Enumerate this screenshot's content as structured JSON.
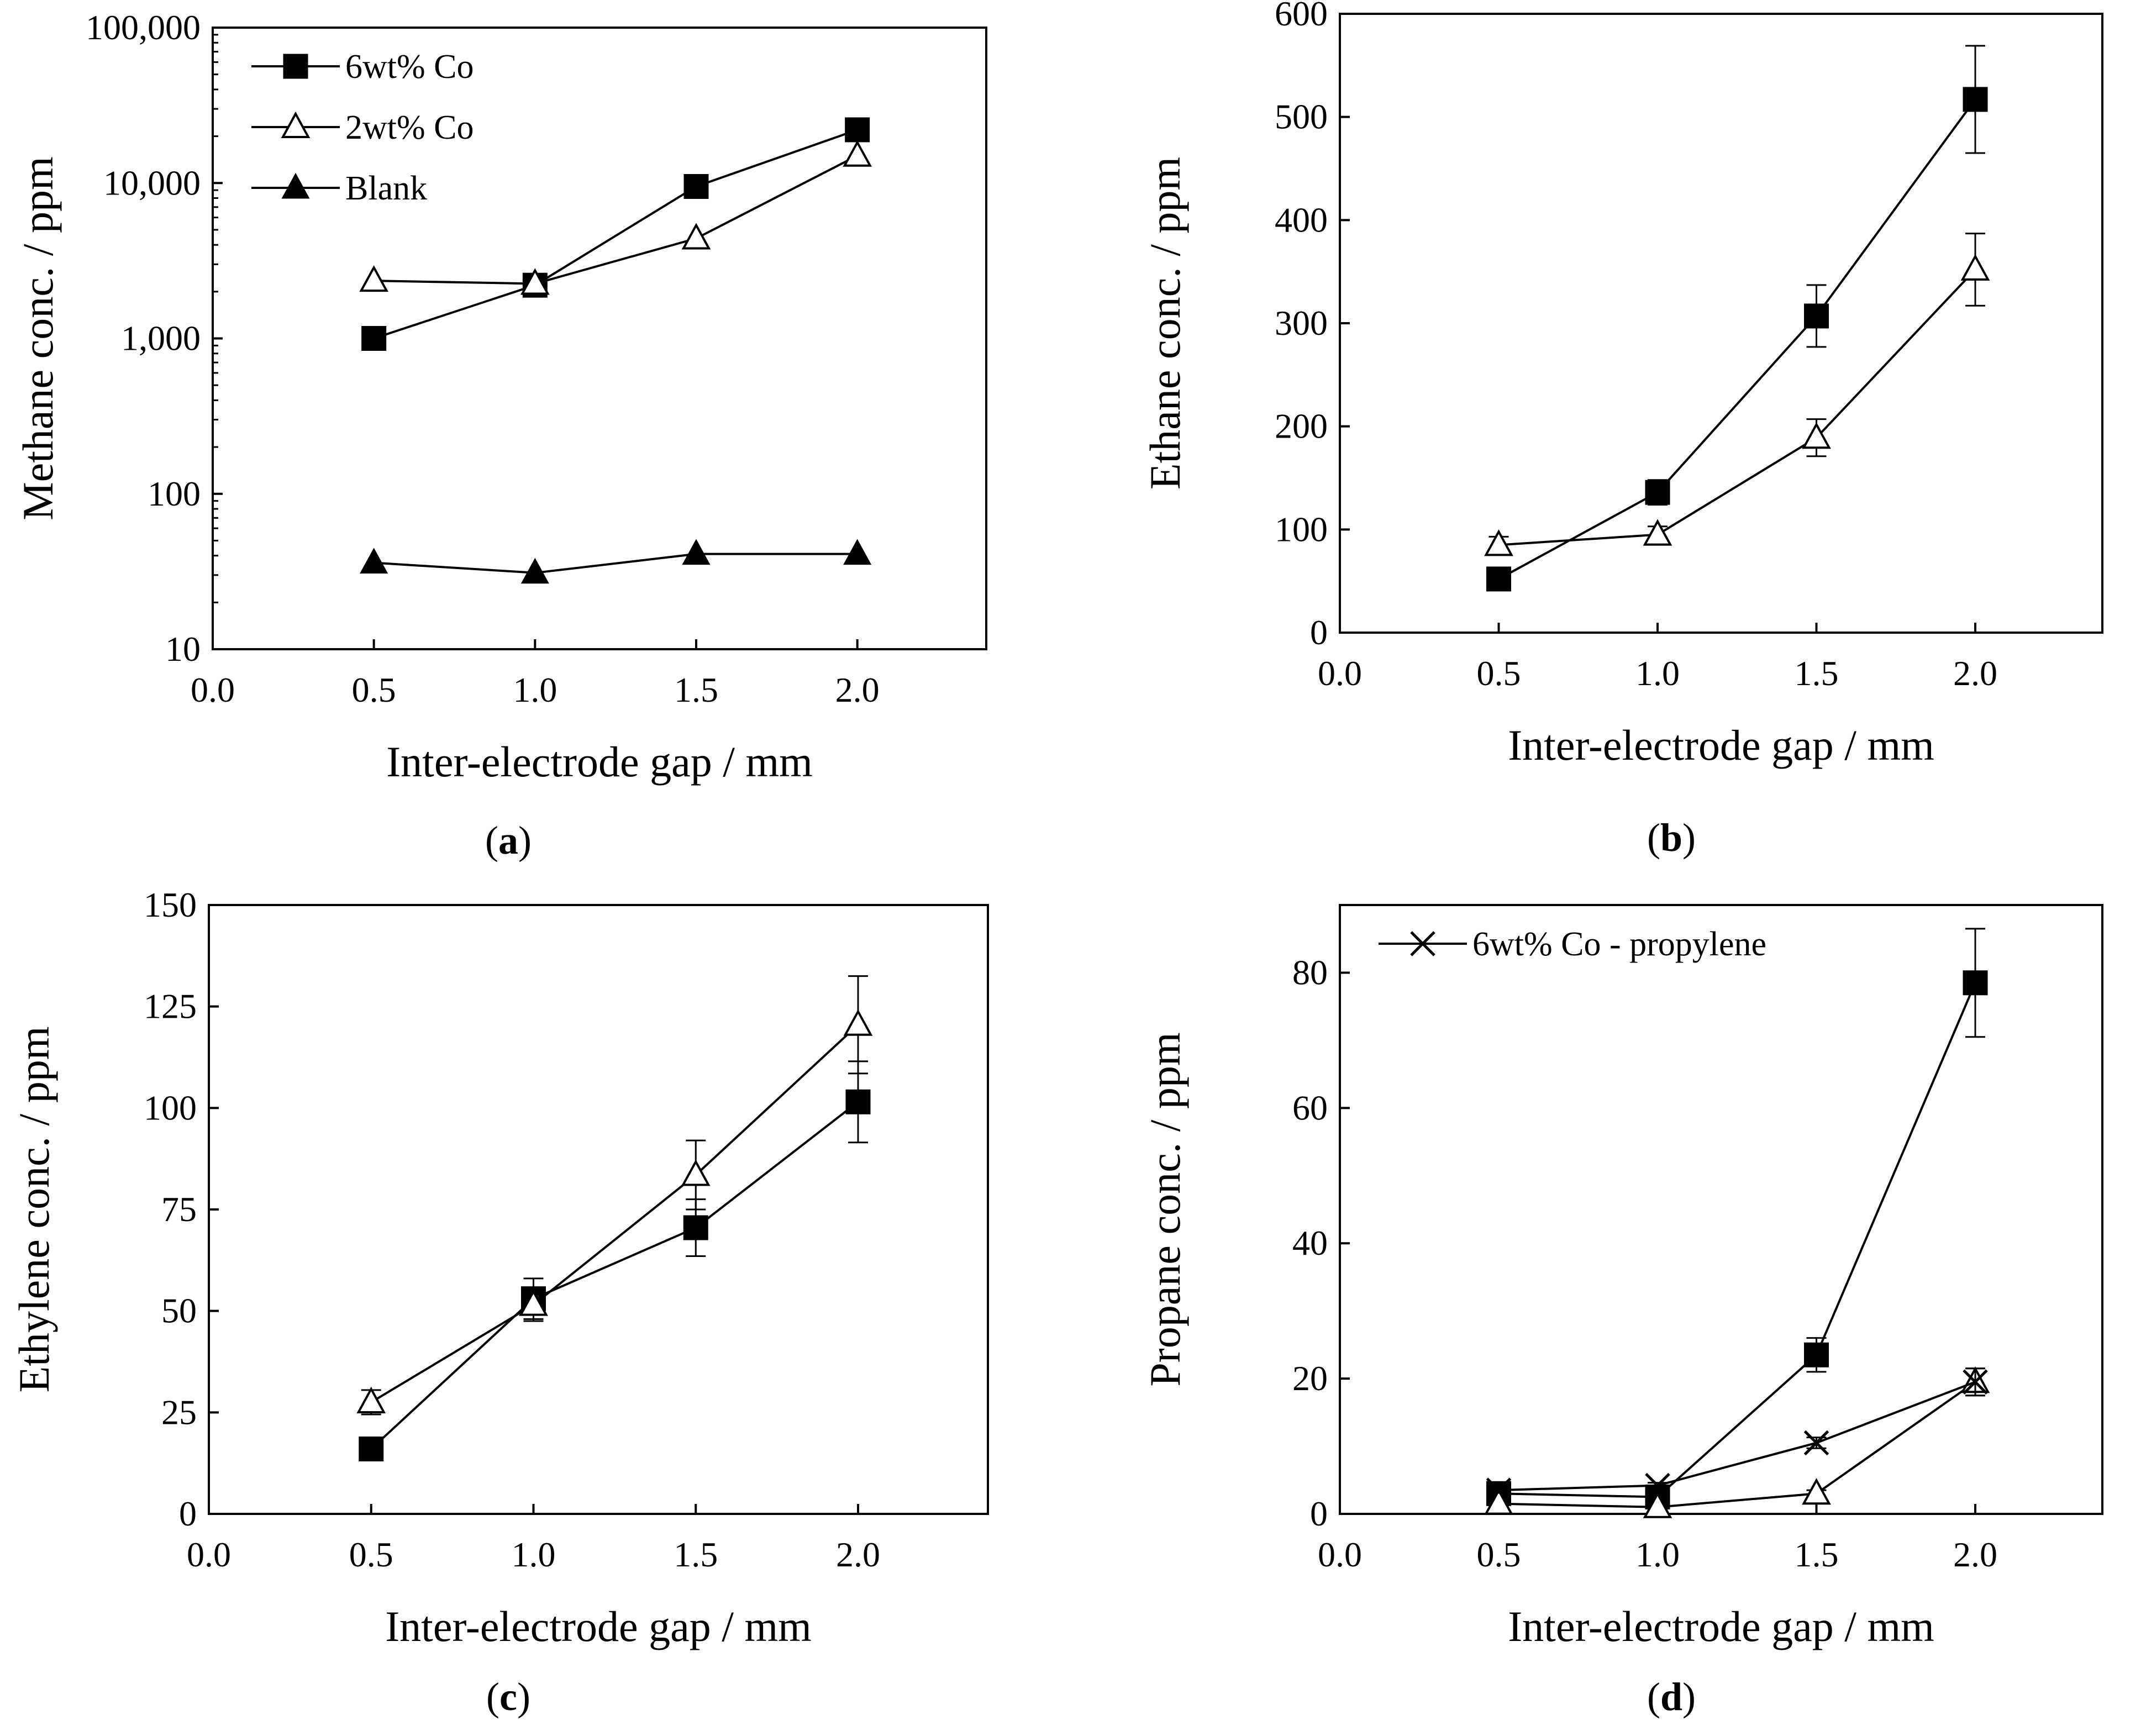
{
  "figure": {
    "chart_data": [
      {
        "id": "a",
        "type": "line",
        "caption_letter": "a",
        "xlabel": "Inter-electrode gap / mm",
        "ylabel": "Methane conc. / ppm",
        "yscale": "log",
        "xlim": [
          0.0,
          2.4
        ],
        "ylim": [
          10,
          100000
        ],
        "xticks": [
          0.0,
          0.5,
          1.0,
          1.5,
          2.0
        ],
        "xtick_labels": [
          "0.0",
          "0.5",
          "1.0",
          "1.5",
          "2.0"
        ],
        "yticks": [
          10,
          100,
          1000,
          10000,
          100000
        ],
        "ytick_labels": [
          "10",
          "100",
          "1,000",
          "10,000",
          "100,000"
        ],
        "legend_position": "top-left",
        "legend": [
          "6wt% Co",
          "2wt% Co",
          "Blank"
        ],
        "series": [
          {
            "name": "6wt% Co",
            "marker": "square-filled",
            "x": [
              0.5,
              1.0,
              1.5,
              2.0
            ],
            "y": [
              1000,
              2200,
              9500,
              22000
            ]
          },
          {
            "name": "2wt% Co",
            "marker": "triangle-open",
            "x": [
              0.5,
              1.0,
              1.5,
              2.0
            ],
            "y": [
              2350,
              2250,
              4400,
              15000
            ]
          },
          {
            "name": "Blank",
            "marker": "triangle-filled",
            "x": [
              0.5,
              1.0,
              1.5,
              2.0
            ],
            "y": [
              36,
              31,
              41,
              41
            ]
          }
        ]
      },
      {
        "id": "b",
        "type": "line",
        "caption_letter": "b",
        "xlabel": "Inter-electrode gap / mm",
        "ylabel": "Ethane conc. / ppm",
        "yscale": "linear",
        "xlim": [
          0.0,
          2.4
        ],
        "ylim": [
          0,
          600
        ],
        "xticks": [
          0.0,
          0.5,
          1.0,
          1.5,
          2.0
        ],
        "xtick_labels": [
          "0.0",
          "0.5",
          "1.0",
          "1.5",
          "2.0"
        ],
        "yticks": [
          0,
          100,
          200,
          300,
          400,
          500,
          600
        ],
        "ytick_labels": [
          "0",
          "100",
          "200",
          "300",
          "400",
          "500",
          "600"
        ],
        "legend": [],
        "series": [
          {
            "name": "6wt% Co",
            "marker": "square-filled",
            "x": [
              0.5,
              1.0,
              1.5,
              2.0
            ],
            "y": [
              52,
              136,
              307,
              517
            ],
            "err": [
              4,
              12,
              30,
              52
            ]
          },
          {
            "name": "2wt% Co",
            "marker": "triangle-open",
            "x": [
              0.5,
              1.0,
              1.5,
              2.0
            ],
            "y": [
              85,
              95,
              189,
              352
            ],
            "err": [
              8,
              8,
              18,
              35
            ]
          }
        ]
      },
      {
        "id": "c",
        "type": "line",
        "caption_letter": "c",
        "xlabel": "Inter-electrode gap / mm",
        "ylabel": "Ethylene conc. / ppm",
        "yscale": "linear",
        "xlim": [
          0.0,
          2.4
        ],
        "ylim": [
          0,
          150
        ],
        "xticks": [
          0.0,
          0.5,
          1.0,
          1.5,
          2.0
        ],
        "xtick_labels": [
          "0.0",
          "0.5",
          "1.0",
          "1.5",
          "2.0"
        ],
        "yticks": [
          0,
          25,
          50,
          75,
          100,
          125,
          150
        ],
        "ytick_labels": [
          "0",
          "25",
          "50",
          "75",
          "100",
          "125",
          "150"
        ],
        "legend": [],
        "series": [
          {
            "name": "6wt% Co",
            "marker": "square-filled",
            "x": [
              0.5,
              1.0,
              1.5,
              2.0
            ],
            "y": [
              16,
              53,
              70.5,
              101.5
            ],
            "err": [
              1,
              5,
              7,
              10
            ]
          },
          {
            "name": "2wt% Co",
            "marker": "triangle-open",
            "x": [
              0.5,
              1.0,
              1.5,
              2.0
            ],
            "y": [
              27.5,
              51.5,
              83.5,
              120.5
            ],
            "err": [
              3,
              4,
              8.5,
              12
            ]
          }
        ]
      },
      {
        "id": "d",
        "type": "line",
        "caption_letter": "d",
        "xlabel": "Inter-electrode gap / mm",
        "ylabel": "Propane conc. / ppm",
        "yscale": "linear",
        "xlim": [
          0.0,
          2.4
        ],
        "ylim": [
          0,
          90
        ],
        "xticks": [
          0.0,
          0.5,
          1.0,
          1.5,
          2.0
        ],
        "xtick_labels": [
          "0.0",
          "0.5",
          "1.0",
          "1.5",
          "2.0"
        ],
        "yticks": [
          0,
          20,
          40,
          60,
          80
        ],
        "ytick_labels": [
          "0",
          "20",
          "40",
          "60",
          "80"
        ],
        "legend_position": "top-left",
        "legend": [
          "6wt% Co - propylene"
        ],
        "series": [
          {
            "name": "6wt% Co",
            "marker": "square-filled",
            "x": [
              0.5,
              1.0,
              1.5,
              2.0
            ],
            "y": [
              3,
              2.5,
              23.5,
              78.5
            ],
            "err": [
              0.5,
              0.5,
              2.5,
              8
            ]
          },
          {
            "name": "2wt% Co",
            "marker": "triangle-open",
            "x": [
              0.5,
              1.0,
              1.5,
              2.0
            ],
            "y": [
              1.5,
              1,
              3,
              19.5
            ],
            "err": [
              0.3,
              0.3,
              0.5,
              2
            ]
          },
          {
            "name": "6wt% Co - propylene",
            "marker": "cross",
            "x": [
              0.5,
              1.0,
              1.5,
              2.0
            ],
            "y": [
              3.5,
              4.2,
              10.5,
              19.5
            ],
            "err": [
              0.4,
              0.4,
              0.8,
              2
            ]
          }
        ]
      }
    ]
  }
}
